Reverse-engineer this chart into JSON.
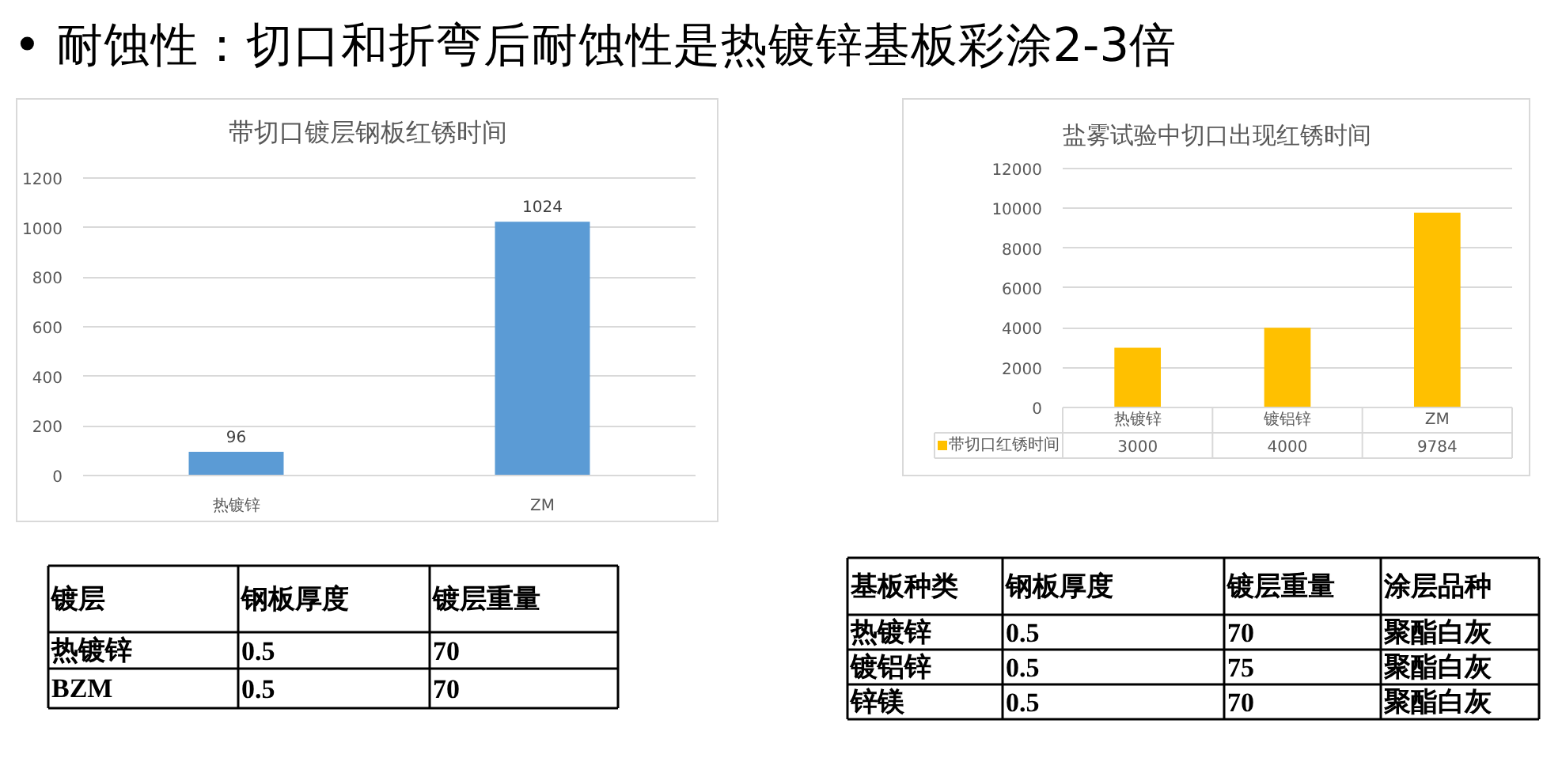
{
  "chart_data": [
    {
      "type": "other",
      "title": "• 耐蚀性：切口和折弯后耐蚀性是热镀锌基板彩涂2-3倍"
    },
    {
      "type": "bar",
      "title": "带切口镀层钢板红锈时间",
      "categories": [
        "热镀锌",
        "ZM"
      ],
      "values": [
        96,
        1024
      ],
      "color": "#5b9bd5",
      "ylim": [
        0,
        1200
      ],
      "yticks": [
        0,
        200,
        400,
        600,
        800,
        1000,
        1200
      ],
      "grid": "y",
      "data_labels": true
    },
    {
      "type": "bar",
      "title": "盐雾试验中切口出现红锈时间",
      "categories": [
        "热镀锌",
        "镀铝锌",
        "ZM"
      ],
      "series": [
        {
          "name": "带切口红锈时间",
          "color": "#ffc000",
          "values": [
            3000,
            4000,
            9784
          ]
        }
      ],
      "ylim": [
        0,
        12000
      ],
      "yticks": [
        0,
        2000,
        4000,
        6000,
        8000,
        10000,
        12000
      ],
      "grid": "y",
      "data_labels": true,
      "legend": "bottom left"
    },
    {
      "type": "other",
      "categories": [
        "镀层",
        "钢板厚度",
        "镀层重量"
      ],
      "annotations": [
        "热镀锌",
        "0.5",
        "70",
        "BZM",
        "0.5",
        "70"
      ]
    },
    {
      "type": "other",
      "categories": [
        "基板种类",
        "钢板厚度",
        "镀层重量",
        "涂层品种"
      ],
      "annotations": [
        "热镀锌",
        "0.5",
        "70",
        "聚酯白灰",
        "镀铝锌",
        "0.5",
        "75",
        "聚酯白灰",
        "锌镁",
        "0.5",
        "70",
        "聚酯白灰"
      ]
    }
  ]
}
